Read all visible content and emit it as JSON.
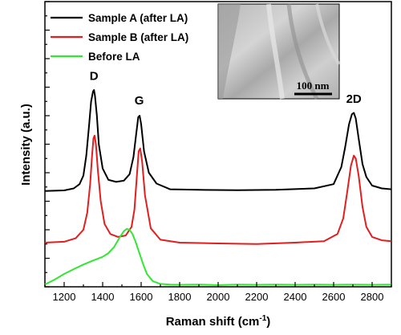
{
  "chart_data": {
    "type": "line",
    "xlabel": "Raman shift (cm",
    "xlabel_sup": "-1",
    "xlabel_close": ")",
    "ylabel": "Intensity (a.u.)",
    "xlim": [
      1100,
      2900
    ],
    "x_ticks": [
      1200,
      1400,
      1600,
      1800,
      2000,
      2200,
      2400,
      2600,
      2800
    ],
    "ylim": [
      0,
      10
    ],
    "y_tick_count": 10,
    "legend_position": "top-left",
    "series": [
      {
        "name": "Sample A (after LA)",
        "color": "#000000",
        "x": [
          1100,
          1200,
          1250,
          1280,
          1300,
          1315,
          1330,
          1340,
          1350,
          1355,
          1360,
          1370,
          1380,
          1400,
          1430,
          1470,
          1510,
          1540,
          1560,
          1575,
          1585,
          1592,
          1600,
          1615,
          1640,
          1680,
          1750,
          1900,
          2100,
          2300,
          2500,
          2600,
          2640,
          2660,
          2680,
          2695,
          2705,
          2715,
          2730,
          2750,
          2770,
          2800,
          2850,
          2900
        ],
        "values": [
          3.36,
          3.38,
          3.45,
          3.6,
          3.9,
          4.6,
          5.7,
          6.5,
          6.85,
          6.9,
          6.7,
          6.0,
          5.0,
          4.15,
          3.75,
          3.68,
          3.72,
          3.95,
          4.55,
          5.4,
          5.95,
          6.0,
          5.7,
          4.75,
          4.0,
          3.62,
          3.42,
          3.4,
          3.39,
          3.4,
          3.45,
          3.6,
          4.2,
          4.9,
          5.7,
          6.05,
          6.1,
          5.9,
          5.2,
          4.3,
          3.85,
          3.55,
          3.45,
          3.42
        ]
      },
      {
        "name": "Sample B (after LA)",
        "color": "#e31e1e",
        "x": [
          1100,
          1200,
          1260,
          1300,
          1320,
          1335,
          1345,
          1352,
          1358,
          1365,
          1375,
          1390,
          1410,
          1440,
          1480,
          1520,
          1550,
          1565,
          1578,
          1587,
          1595,
          1605,
          1620,
          1650,
          1700,
          1800,
          2000,
          2200,
          2400,
          2550,
          2620,
          2650,
          2670,
          2690,
          2705,
          2715,
          2730,
          2750,
          2770,
          2800,
          2850,
          2900
        ],
        "values": [
          1.55,
          1.58,
          1.7,
          2.0,
          2.6,
          3.6,
          4.6,
          5.2,
          5.3,
          5.0,
          4.1,
          3.0,
          2.2,
          1.85,
          1.75,
          1.8,
          2.1,
          2.7,
          3.9,
          4.75,
          4.85,
          4.4,
          3.2,
          2.05,
          1.65,
          1.55,
          1.52,
          1.5,
          1.55,
          1.6,
          1.85,
          2.4,
          3.3,
          4.25,
          4.6,
          4.5,
          3.9,
          2.8,
          2.1,
          1.75,
          1.63,
          1.6
        ]
      },
      {
        "name": "Before LA",
        "color": "#33e633",
        "x": [
          1100,
          1150,
          1200,
          1250,
          1300,
          1350,
          1400,
          1430,
          1460,
          1490,
          1510,
          1525,
          1540,
          1555,
          1570,
          1590,
          1610,
          1630,
          1660,
          1700,
          1750,
          1800,
          1900,
          2000,
          2100,
          2200,
          2300,
          2400,
          2500,
          2600,
          2700,
          2800,
          2900
        ],
        "values": [
          0.08,
          0.25,
          0.45,
          0.62,
          0.78,
          0.92,
          1.05,
          1.18,
          1.4,
          1.75,
          1.95,
          2.03,
          2.0,
          1.85,
          1.6,
          1.2,
          0.8,
          0.45,
          0.2,
          0.1,
          0.08,
          0.07,
          0.08,
          0.06,
          0.08,
          0.07,
          0.08,
          0.07,
          0.08,
          0.07,
          0.08,
          0.07,
          0.08
        ]
      }
    ],
    "annotations": [
      {
        "text": "D",
        "x": 1355,
        "y": 7.25
      },
      {
        "text": "G",
        "x": 1590,
        "y": 6.4
      },
      {
        "text": "2D",
        "x": 2705,
        "y": 6.45
      }
    ]
  },
  "inset": {
    "scale_bar_label": "100 nm"
  }
}
